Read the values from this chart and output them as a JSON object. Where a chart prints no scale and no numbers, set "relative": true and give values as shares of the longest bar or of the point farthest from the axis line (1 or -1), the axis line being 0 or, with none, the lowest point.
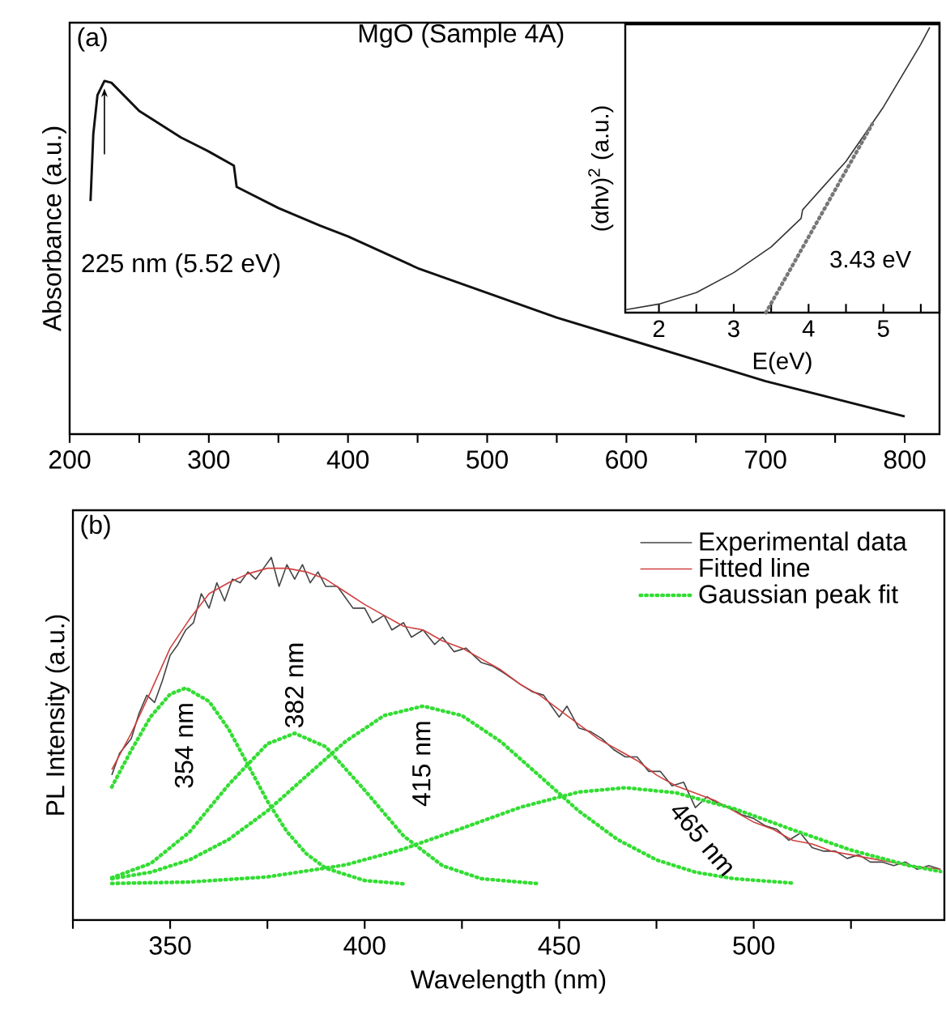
{
  "chart_data": [
    {
      "type": "line",
      "title": "MgO (Sample 4A)",
      "ylabel": "Absorbance (a.u.)",
      "relative": true,
      "color": "#111111",
      "x": [
        215,
        217,
        220,
        225,
        230,
        250,
        280,
        300,
        318,
        320,
        350,
        380,
        400,
        450,
        500,
        550,
        600,
        650,
        700,
        750,
        800
      ],
      "values": [
        0.66,
        0.85,
        0.96,
        1.0,
        0.995,
        0.915,
        0.84,
        0.8,
        0.76,
        0.7,
        0.64,
        0.59,
        0.56,
        0.47,
        0.4,
        0.33,
        0.27,
        0.21,
        0.15,
        0.1,
        0.05
      ],
      "xlim": [
        200,
        825
      ],
      "xticks": [
        200,
        {
          "value": 250,
          "label": null
        },
        300,
        {
          "value": 350,
          "label": null
        },
        400,
        {
          "value": 450,
          "label": null
        },
        500,
        {
          "value": 550,
          "label": null
        },
        600,
        {
          "value": 650,
          "label": null
        },
        700,
        {
          "value": 750,
          "label": null
        },
        800
      ],
      "annotations": [
        "(a)",
        "225 nm (5.52 eV)"
      ]
    },
    {
      "type": "line",
      "xlabel": "E(eV)",
      "ylabel": "(αhν)$^{2}$ (a.u.)",
      "relative": true,
      "series": [
        {
          "color": "#333333",
          "x": [
            1.55,
            2,
            2.5,
            3,
            3.5,
            3.9,
            3.92,
            4.5,
            5,
            5.5,
            5.62
          ],
          "values": [
            0.01,
            0.03,
            0.07,
            0.14,
            0.23,
            0.33,
            0.36,
            0.53,
            0.72,
            0.94,
            1.0
          ]
        },
        {
          "color": "#777777",
          "line_style": "dotted",
          "x": [
            3.43,
            4.85
          ],
          "values": [
            0,
            0.66
          ]
        }
      ],
      "xlim": [
        1.55,
        5.75
      ],
      "xticks": [
        2,
        {
          "value": 2.5,
          "label": null
        },
        3,
        {
          "value": 3.5,
          "label": null
        },
        4,
        {
          "value": 4.5,
          "label": null
        },
        5,
        {
          "value": 5.5,
          "label": null
        }
      ],
      "annotations": [
        "3.43 eV"
      ]
    },
    {
      "type": "line",
      "xlabel": "Wavelength (nm)",
      "ylabel": "PL Intensity (a.u.)",
      "relative": true,
      "legend": "top right",
      "series": [
        {
          "name": "Experimental data",
          "color": "#444444",
          "x": [
            335,
            337,
            340,
            342,
            344,
            346,
            348,
            350,
            352,
            354,
            356,
            358,
            360,
            362,
            364,
            366,
            368,
            370,
            372,
            374,
            376,
            378,
            380,
            382,
            384,
            386,
            388,
            390,
            393,
            395,
            397,
            400,
            402,
            405,
            407,
            410,
            412,
            415,
            418,
            420,
            423,
            426,
            430,
            433,
            436,
            440,
            443,
            446,
            450,
            452,
            455,
            458,
            461,
            464,
            467,
            470,
            473,
            476,
            479,
            482,
            485,
            488,
            491,
            494,
            497,
            500,
            503,
            506,
            509,
            512,
            515,
            518,
            521,
            524,
            527,
            530,
            533,
            536,
            539,
            542,
            545,
            548
          ],
          "values": [
            0.4,
            0.46,
            0.5,
            0.57,
            0.62,
            0.6,
            0.66,
            0.73,
            0.76,
            0.8,
            0.82,
            0.9,
            0.86,
            0.93,
            0.88,
            0.94,
            0.93,
            0.96,
            0.94,
            0.97,
            1.0,
            0.92,
            0.98,
            0.94,
            0.98,
            0.93,
            0.96,
            0.92,
            0.92,
            0.89,
            0.86,
            0.86,
            0.82,
            0.84,
            0.8,
            0.82,
            0.78,
            0.8,
            0.76,
            0.78,
            0.74,
            0.75,
            0.71,
            0.7,
            0.68,
            0.65,
            0.63,
            0.62,
            0.56,
            0.59,
            0.53,
            0.52,
            0.5,
            0.47,
            0.45,
            0.45,
            0.41,
            0.41,
            0.37,
            0.38,
            0.31,
            0.34,
            0.32,
            0.31,
            0.29,
            0.28,
            0.26,
            0.25,
            0.22,
            0.24,
            0.2,
            0.19,
            0.19,
            0.17,
            0.18,
            0.16,
            0.16,
            0.15,
            0.16,
            0.14,
            0.15,
            0.14
          ]
        },
        {
          "name": "Fitted line",
          "color": "#d04040",
          "x": [
            335,
            340,
            345,
            350,
            355,
            360,
            365,
            370,
            375,
            380,
            385,
            390,
            395,
            400,
            405,
            410,
            415,
            420,
            425,
            430,
            435,
            440,
            445,
            450,
            455,
            460,
            465,
            470,
            475,
            480,
            485,
            490,
            495,
            500,
            505,
            510,
            515,
            520,
            525,
            530,
            535,
            540,
            548
          ],
          "values": [
            0.415,
            0.515,
            0.63,
            0.75,
            0.83,
            0.9,
            0.93,
            0.955,
            0.97,
            0.97,
            0.96,
            0.94,
            0.905,
            0.87,
            0.84,
            0.81,
            0.8,
            0.77,
            0.75,
            0.72,
            0.69,
            0.65,
            0.62,
            0.58,
            0.54,
            0.5,
            0.47,
            0.44,
            0.4,
            0.37,
            0.35,
            0.33,
            0.3,
            0.27,
            0.25,
            0.22,
            0.21,
            0.19,
            0.18,
            0.17,
            0.16,
            0.15,
            0.14
          ]
        },
        {
          "name": "Gaussian peak fit",
          "color": "#33dd33",
          "line_style": "dotted",
          "x": [
            335,
            340,
            345,
            350,
            354,
            360,
            365,
            370,
            375,
            380,
            385,
            390,
            400,
            410
          ],
          "values": [
            0.367,
            0.468,
            0.561,
            0.623,
            0.64,
            0.603,
            0.527,
            0.428,
            0.328,
            0.244,
            0.183,
            0.143,
            0.109,
            0.1
          ]
        },
        {
          "color": "#33dd33",
          "line_style": "dotted",
          "x": [
            335,
            345,
            355,
            365,
            375,
            382,
            390,
            400,
            410,
            420,
            430,
            445
          ],
          "values": [
            0.117,
            0.156,
            0.243,
            0.373,
            0.486,
            0.515,
            0.478,
            0.358,
            0.232,
            0.15,
            0.114,
            0.1
          ]
        },
        {
          "color": "#33dd33",
          "line_style": "dotted",
          "x": [
            335,
            345,
            355,
            365,
            375,
            385,
            395,
            405,
            415,
            425,
            435,
            445,
            455,
            465,
            475,
            485,
            495,
            510
          ],
          "values": [
            0.114,
            0.132,
            0.166,
            0.222,
            0.301,
            0.397,
            0.492,
            0.564,
            0.59,
            0.564,
            0.492,
            0.397,
            0.301,
            0.222,
            0.166,
            0.132,
            0.114,
            0.102
          ]
        },
        {
          "color": "#33dd33",
          "line_style": "dotted",
          "x": [
            335,
            355,
            375,
            395,
            410,
            425,
            440,
            455,
            467,
            480,
            495,
            510,
            525,
            540,
            548
          ],
          "values": [
            0.101,
            0.105,
            0.119,
            0.152,
            0.196,
            0.253,
            0.311,
            0.353,
            0.365,
            0.351,
            0.307,
            0.249,
            0.193,
            0.15,
            0.134
          ]
        }
      ],
      "xlim": [
        325,
        549
      ],
      "xticks": [
        {
          "value": 325,
          "label": null
        },
        350,
        {
          "value": 375,
          "label": null
        },
        400,
        {
          "value": 425,
          "label": null
        },
        450,
        {
          "value": 475,
          "label": null
        },
        500,
        {
          "value": 525,
          "label": null
        }
      ],
      "annotations": [
        "(b)",
        "354 nm",
        "382 nm",
        "415 nm",
        "465 nm"
      ]
    }
  ]
}
